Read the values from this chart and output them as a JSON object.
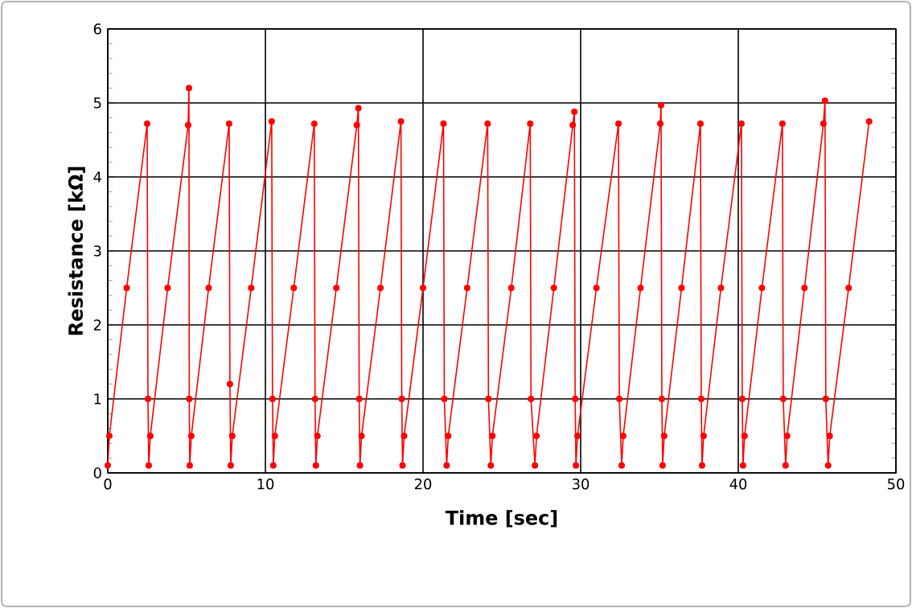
{
  "chart_data": {
    "type": "line",
    "xlabel": "Time [sec]",
    "ylabel": "Resistance [kΩ]",
    "xlim": [
      0,
      50
    ],
    "ylim": [
      0,
      6
    ],
    "xticks": [
      0,
      10,
      20,
      30,
      40,
      50
    ],
    "yticks": [
      0,
      1,
      2,
      3,
      4,
      5,
      6
    ],
    "grid": true,
    "marker": "circle",
    "line_style": "solid",
    "series": [
      {
        "color": "#ff0000",
        "x": [
          0.0,
          0.1,
          1.2,
          2.5,
          2.55,
          2.6,
          2.7,
          3.8,
          5.1,
          5.15,
          5.17,
          5.2,
          5.3,
          6.4,
          7.7,
          7.75,
          7.8,
          7.9,
          9.1,
          10.4,
          10.45,
          10.5,
          10.6,
          11.8,
          13.1,
          13.15,
          13.2,
          13.3,
          14.5,
          15.8,
          15.9,
          15.95,
          16.0,
          16.1,
          17.3,
          18.6,
          18.65,
          18.7,
          18.8,
          20.0,
          21.3,
          21.35,
          21.5,
          21.6,
          22.8,
          24.1,
          24.15,
          24.3,
          24.4,
          25.6,
          26.8,
          26.85,
          27.1,
          27.2,
          28.3,
          29.5,
          29.6,
          29.65,
          29.7,
          29.8,
          31.0,
          32.4,
          32.45,
          32.6,
          32.7,
          33.8,
          35.05,
          35.1,
          35.15,
          35.2,
          35.3,
          36.4,
          37.6,
          37.65,
          37.7,
          37.8,
          38.9,
          40.2,
          40.25,
          40.3,
          40.4,
          41.5,
          42.8,
          42.85,
          43.0,
          43.1,
          44.2,
          45.4,
          45.5,
          45.55,
          45.7,
          45.8,
          47.0,
          48.3
        ],
        "values": [
          0.1,
          0.5,
          2.5,
          4.72,
          1.0,
          0.1,
          0.5,
          2.5,
          4.7,
          5.2,
          1.0,
          0.1,
          0.5,
          2.5,
          4.72,
          1.2,
          0.1,
          0.5,
          2.5,
          4.75,
          1.0,
          0.1,
          0.5,
          2.5,
          4.72,
          1.0,
          0.1,
          0.5,
          2.5,
          4.7,
          4.93,
          1.0,
          0.1,
          0.5,
          2.5,
          4.75,
          1.0,
          0.1,
          0.5,
          2.5,
          4.72,
          1.0,
          0.1,
          0.5,
          2.5,
          4.72,
          1.0,
          0.1,
          0.5,
          2.5,
          4.72,
          1.0,
          0.1,
          0.5,
          2.5,
          4.7,
          4.88,
          1.0,
          0.1,
          0.5,
          2.5,
          4.72,
          1.0,
          0.1,
          0.5,
          2.5,
          4.72,
          4.97,
          1.0,
          0.1,
          0.5,
          2.5,
          4.72,
          1.0,
          0.1,
          0.5,
          2.5,
          4.72,
          1.0,
          0.1,
          0.5,
          2.5,
          4.72,
          1.0,
          0.1,
          0.5,
          2.5,
          4.72,
          5.03,
          1.0,
          0.1,
          0.5,
          2.5,
          4.75
        ]
      }
    ]
  }
}
